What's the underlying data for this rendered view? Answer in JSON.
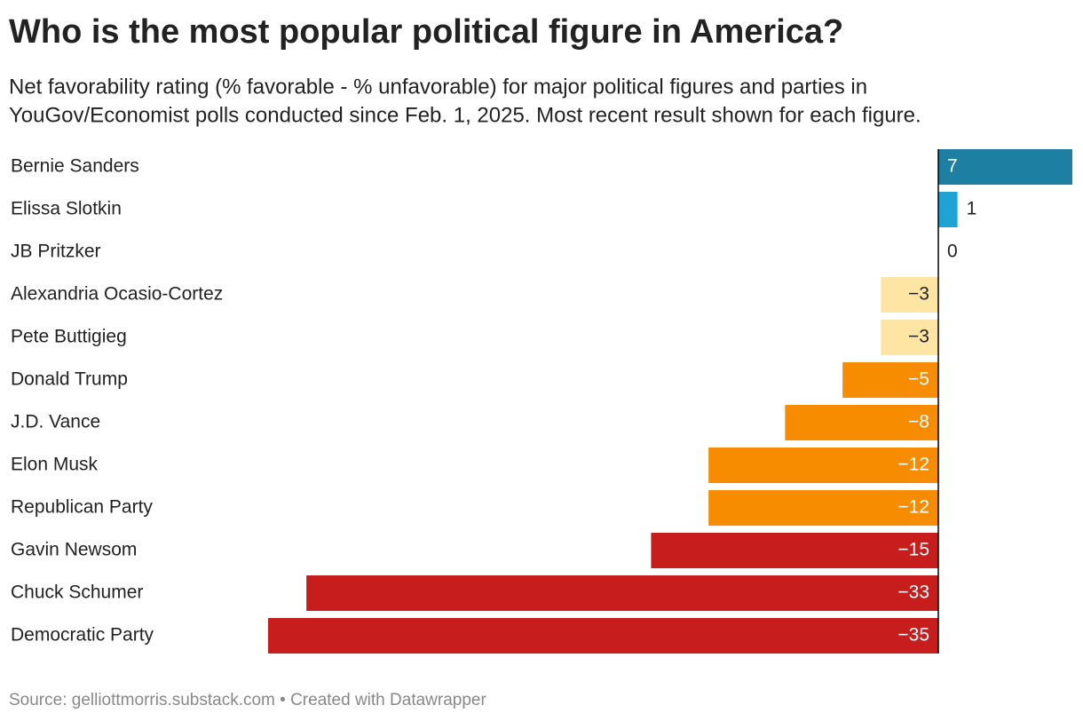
{
  "chart_data": {
    "type": "bar",
    "orientation": "horizontal",
    "title": "Who is the most popular political figure in America?",
    "subtitle": [
      "Net favorability rating (% favorable - % unfavorable) for major political figures and parties in",
      "YouGov/Economist polls conducted since Feb. 1, 2025. Most recent result shown for each figure."
    ],
    "source": "Source: gelliottmorris.substack.com • Created with Datawrapper",
    "categories": [
      "Bernie Sanders",
      "Elissa Slotkin",
      "JB Pritzker",
      "Alexandria Ocasio-Cortez",
      "Pete Buttigieg",
      "Donald Trump",
      "J.D. Vance",
      "Elon Musk",
      "Republican Party",
      "Gavin Newsom",
      "Chuck Schumer",
      "Democratic Party"
    ],
    "values": [
      7,
      1,
      0,
      -3,
      -3,
      -5,
      -8,
      -12,
      -12,
      -15,
      -33,
      -35
    ],
    "value_labels": [
      "7",
      "1",
      "0",
      "−3",
      "−3",
      "−5",
      "−8",
      "−12",
      "−12",
      "−15",
      "−33",
      "−35"
    ],
    "colors": [
      "#1d7fa1",
      "#1fa3d4",
      "#1fa3d4",
      "#fee5a3",
      "#fee5a3",
      "#f78c00",
      "#f78c00",
      "#f78c00",
      "#f78c00",
      "#c71d1d",
      "#c71d1d",
      "#c71d1d"
    ],
    "xlim": [
      -35,
      7
    ]
  }
}
